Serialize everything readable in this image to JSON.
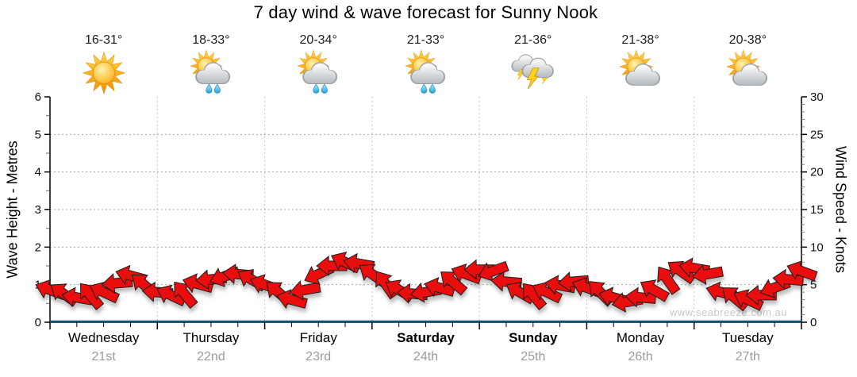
{
  "title": "7 day wind & wave forecast for Sunny Nook",
  "watermark": "www.seabreeze.com.au",
  "axes": {
    "left_title": "Wave Height - Metres",
    "right_title": "Wind Speed - Knots"
  },
  "days": [
    {
      "name": "Wednesday",
      "date": "21st",
      "temp": "16-31°",
      "icon": "sun",
      "weekend": false
    },
    {
      "name": "Thursday",
      "date": "22nd",
      "temp": "18-33°",
      "icon": "sun-cloud-rain",
      "weekend": false
    },
    {
      "name": "Friday",
      "date": "23rd",
      "temp": "20-34°",
      "icon": "sun-cloud-rain",
      "weekend": false
    },
    {
      "name": "Saturday",
      "date": "24th",
      "temp": "21-33°",
      "icon": "sun-cloud-rain",
      "weekend": true
    },
    {
      "name": "Sunday",
      "date": "25th",
      "temp": "21-36°",
      "icon": "storm",
      "weekend": true
    },
    {
      "name": "Monday",
      "date": "26th",
      "temp": "21-38°",
      "icon": "sun-cloud",
      "weekend": false
    },
    {
      "name": "Tuesday",
      "date": "27th",
      "temp": "20-38°",
      "icon": "sun-cloud",
      "weekend": false
    }
  ],
  "chart_data": {
    "type": "line",
    "title": "7 day wind & wave forecast for Sunny Nook",
    "x": {
      "categories": [
        "Wednesday 21st",
        "Thursday 22nd",
        "Friday 23rd",
        "Saturday 24th",
        "Sunday 25th",
        "Monday 26th",
        "Tuesday 27th"
      ],
      "samples_per_day": 8,
      "sample_interval_hours": 3,
      "minor_ticks_per_day": 4
    },
    "left_axis": {
      "label": "Wave Height - Metres",
      "range": [
        0,
        6
      ],
      "major_tick": 1,
      "minor_tick": 0.5,
      "grid": "dotted"
    },
    "right_axis": {
      "label": "Wind Speed - Knots",
      "range": [
        0,
        30
      ],
      "major_tick": 5,
      "minor_tick": 1
    },
    "grid": {
      "horizontal_dotted_at_metres": [
        1,
        2,
        3,
        4,
        5
      ],
      "vertical_dotted_at_day_boundaries": true
    },
    "series": [
      {
        "name": "Wind Speed",
        "axis": "right",
        "unit": "knots",
        "style": "red-direction-arrows",
        "values": [
          4.3,
          3.8,
          3.3,
          3.6,
          4.0,
          5.2,
          6.2,
          5.0,
          4.0,
          3.6,
          3.8,
          5.1,
          5.7,
          6.1,
          6.4,
          5.7,
          5.0,
          4.0,
          3.0,
          4.3,
          6.4,
          7.5,
          8.0,
          7.8,
          6.4,
          5.1,
          4.3,
          3.8,
          4.0,
          4.6,
          5.4,
          6.4,
          7.0,
          6.8,
          5.4,
          4.0,
          3.6,
          4.0,
          4.9,
          5.4,
          4.6,
          4.0,
          3.3,
          2.7,
          3.3,
          4.3,
          5.7,
          6.8,
          7.2,
          6.4,
          4.0,
          3.3,
          3.0,
          3.6,
          4.6,
          5.7,
          6.8
        ],
        "directions_deg": [
          200,
          215,
          190,
          230,
          205,
          175,
          195,
          220,
          185,
          205,
          230,
          195,
          175,
          160,
          185,
          210,
          200,
          220,
          195,
          170,
          155,
          180,
          205,
          190,
          215,
          235,
          210,
          185,
          170,
          195,
          220,
          200,
          180,
          160,
          185,
          210,
          230,
          205,
          190,
          175,
          200,
          225,
          195,
          170,
          185,
          210,
          235,
          215,
          190,
          170,
          195,
          220,
          205,
          180,
          160,
          185,
          200
        ]
      },
      {
        "name": "Wave Height",
        "axis": "left",
        "unit": "metres",
        "style": "flat-line",
        "color": "#0e547c",
        "constant_value": 0
      }
    ],
    "colors": {
      "arrow_fill": "#ea0f0f",
      "arrow_outline": "#1c1c1c",
      "wave_line": "#0e547c",
      "grid_horizontal": "#a8a8a8",
      "grid_vertical": "#c6c6c6",
      "axis": "#000000",
      "minor_tick": "#808080",
      "watermark": "#c9c9c9"
    }
  }
}
